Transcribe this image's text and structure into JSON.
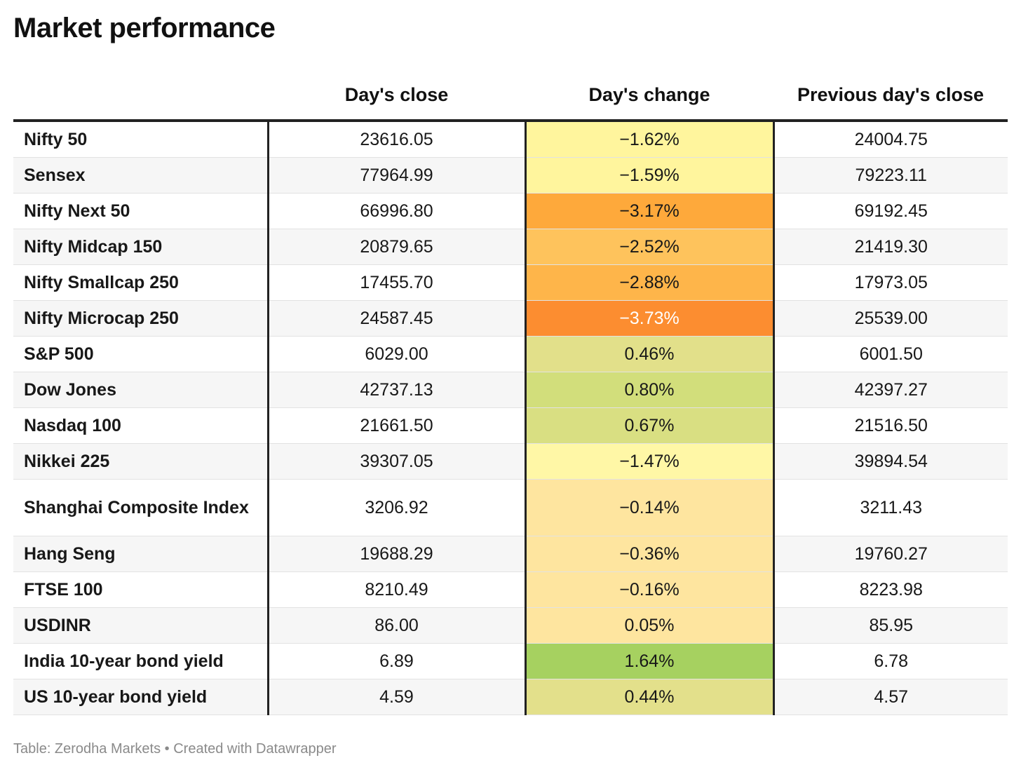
{
  "title": "Market performance",
  "chart_data": {
    "type": "table",
    "columns": [
      "",
      "Day's close",
      "Day's change",
      "Previous day's close"
    ],
    "rows": [
      {
        "name": "Nifty 50",
        "close": "23616.05",
        "change": "−1.62%",
        "prev": "24004.75",
        "color": "#fff59d",
        "text_color": "#181818"
      },
      {
        "name": "Sensex",
        "close": "77964.99",
        "change": "−1.59%",
        "prev": "79223.11",
        "color": "#fff59d",
        "text_color": "#181818"
      },
      {
        "name": "Nifty Next 50",
        "close": "66996.80",
        "change": "−3.17%",
        "prev": "69192.45",
        "color": "#fea93b",
        "text_color": "#181818"
      },
      {
        "name": "Nifty Midcap 150",
        "close": "20879.65",
        "change": "−2.52%",
        "prev": "21419.30",
        "color": "#fec35c",
        "text_color": "#181818"
      },
      {
        "name": "Nifty Smallcap 250",
        "close": "17455.70",
        "change": "−2.88%",
        "prev": "17973.05",
        "color": "#feb54a",
        "text_color": "#181818"
      },
      {
        "name": "Nifty Microcap 250",
        "close": "24587.45",
        "change": "−3.73%",
        "prev": "25539.00",
        "color": "#fc8d30",
        "text_color": "#ffffff"
      },
      {
        "name": "S&P 500",
        "close": "6029.00",
        "change": "0.46%",
        "prev": "6001.50",
        "color": "#e2e08a",
        "text_color": "#181818"
      },
      {
        "name": "Dow Jones",
        "close": "42737.13",
        "change": "0.80%",
        "prev": "42397.27",
        "color": "#d2de7b",
        "text_color": "#181818"
      },
      {
        "name": "Nasdaq 100",
        "close": "21661.50",
        "change": "0.67%",
        "prev": "21516.50",
        "color": "#d9df82",
        "text_color": "#181818"
      },
      {
        "name": "Nikkei 225",
        "close": "39307.05",
        "change": "−1.47%",
        "prev": "39894.54",
        "color": "#fff7a6",
        "text_color": "#181818"
      },
      {
        "name": "Shanghai Composite Index",
        "close": "3206.92",
        "change": "−0.14%",
        "prev": "3211.43",
        "color": "#fee59f",
        "text_color": "#181818"
      },
      {
        "name": "Hang Seng",
        "close": "19688.29",
        "change": "−0.36%",
        "prev": "19760.27",
        "color": "#fee59f",
        "text_color": "#181818"
      },
      {
        "name": "FTSE 100",
        "close": "8210.49",
        "change": "−0.16%",
        "prev": "8223.98",
        "color": "#fee59f",
        "text_color": "#181818"
      },
      {
        "name": "USDINR",
        "close": "86.00",
        "change": "0.05%",
        "prev": "85.95",
        "color": "#fee59f",
        "text_color": "#181818"
      },
      {
        "name": "India 10-year bond yield",
        "close": "6.89",
        "change": "1.64%",
        "prev": "6.78",
        "color": "#a6d160",
        "text_color": "#181818"
      },
      {
        "name": "US 10-year bond yield",
        "close": "4.59",
        "change": "0.44%",
        "prev": "4.57",
        "color": "#e3e08b",
        "text_color": "#181818"
      }
    ]
  },
  "footer": "Table: Zerodha Markets • Created with Datawrapper"
}
